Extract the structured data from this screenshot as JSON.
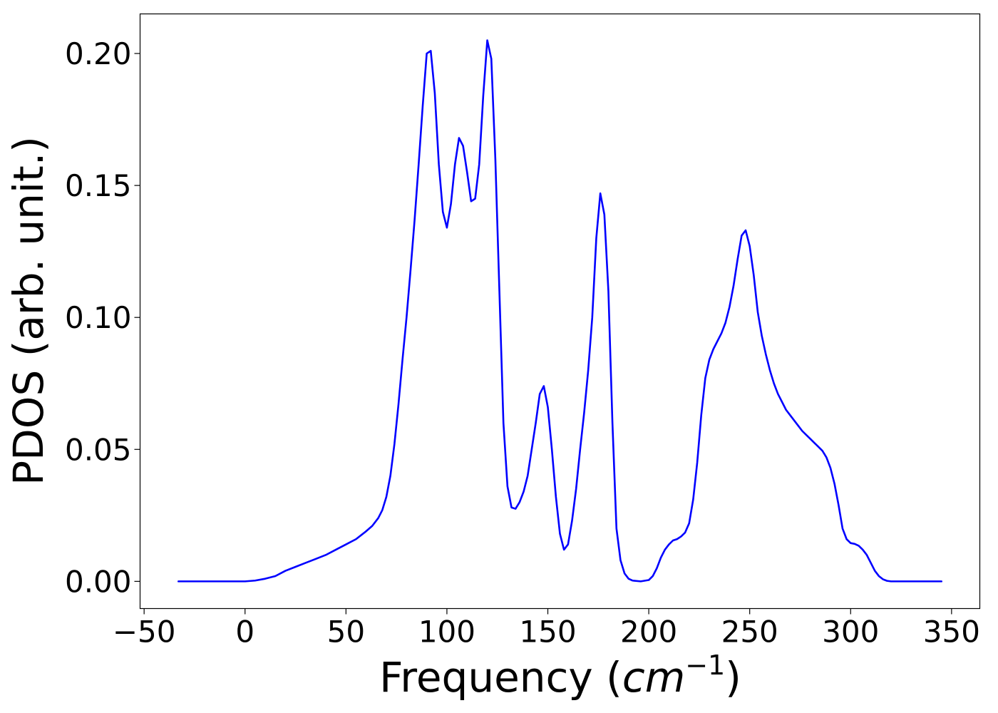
{
  "chart_data": {
    "type": "line",
    "title": "",
    "xlabel_main": "Frequency (",
    "xlabel_unit": "cm",
    "xlabel_exp": "−1",
    "xlabel_close": ")",
    "ylabel": "PDOS (arb. unit.)",
    "xlim": [
      -52,
      364
    ],
    "ylim": [
      -0.0103,
      0.215
    ],
    "xticks": [
      -50,
      0,
      50,
      100,
      150,
      200,
      250,
      300,
      350
    ],
    "xtick_labels": [
      "−50",
      "0",
      "50",
      "100",
      "150",
      "200",
      "250",
      "300",
      "350"
    ],
    "yticks": [
      0.0,
      0.05,
      0.1,
      0.15,
      0.2
    ],
    "ytick_labels": [
      "0.00",
      "0.05",
      "0.10",
      "0.15",
      "0.20"
    ],
    "grid": false,
    "legend": "none",
    "series": [
      {
        "color": "#0000ff",
        "x": [
          -33,
          0,
          5,
          10,
          15,
          20,
          25,
          30,
          35,
          40,
          45,
          50,
          55,
          60,
          63,
          66,
          68,
          70,
          72,
          74,
          76,
          78,
          80,
          82,
          84,
          86,
          88,
          90,
          92,
          94,
          96,
          98,
          100,
          102,
          104,
          106,
          108,
          110,
          112,
          114,
          116,
          118,
          120,
          122,
          124,
          126,
          128,
          130,
          132,
          134,
          136,
          138,
          140,
          142,
          144,
          146,
          148,
          150,
          152,
          154,
          156,
          158,
          160,
          162,
          164,
          166,
          168,
          170,
          172,
          174,
          176,
          178,
          180,
          182,
          184,
          186,
          188,
          190,
          192,
          196,
          200,
          202,
          204,
          206,
          208,
          210,
          212,
          214,
          216,
          218,
          220,
          222,
          224,
          226,
          228,
          230,
          232,
          234,
          236,
          238,
          240,
          242,
          244,
          246,
          248,
          250,
          252,
          254,
          256,
          258,
          260,
          262,
          264,
          266,
          268,
          270,
          272,
          274,
          276,
          278,
          280,
          282,
          284,
          286,
          288,
          290,
          292,
          294,
          296,
          298,
          300,
          302,
          304,
          306,
          308,
          310,
          312,
          314,
          316,
          318,
          320,
          322,
          326,
          345
        ],
        "y": [
          0.0,
          0.0,
          0.0003,
          0.001,
          0.002,
          0.004,
          0.0055,
          0.007,
          0.0085,
          0.01,
          0.012,
          0.014,
          0.016,
          0.019,
          0.021,
          0.024,
          0.027,
          0.032,
          0.04,
          0.052,
          0.067,
          0.084,
          0.1,
          0.118,
          0.137,
          0.158,
          0.18,
          0.2,
          0.201,
          0.185,
          0.158,
          0.14,
          0.134,
          0.143,
          0.158,
          0.168,
          0.165,
          0.155,
          0.144,
          0.145,
          0.158,
          0.184,
          0.205,
          0.198,
          0.16,
          0.11,
          0.06,
          0.036,
          0.028,
          0.0275,
          0.03,
          0.034,
          0.04,
          0.05,
          0.06,
          0.071,
          0.074,
          0.066,
          0.05,
          0.032,
          0.018,
          0.012,
          0.014,
          0.023,
          0.035,
          0.05,
          0.064,
          0.08,
          0.1,
          0.13,
          0.147,
          0.139,
          0.11,
          0.06,
          0.02,
          0.008,
          0.003,
          0.001,
          0.0003,
          0.0,
          0.0005,
          0.002,
          0.005,
          0.009,
          0.012,
          0.014,
          0.0155,
          0.016,
          0.017,
          0.0185,
          0.022,
          0.031,
          0.045,
          0.063,
          0.077,
          0.084,
          0.088,
          0.091,
          0.094,
          0.098,
          0.104,
          0.112,
          0.122,
          0.131,
          0.133,
          0.127,
          0.116,
          0.102,
          0.093,
          0.086,
          0.08,
          0.075,
          0.071,
          0.068,
          0.065,
          0.063,
          0.061,
          0.059,
          0.057,
          0.0555,
          0.054,
          0.0525,
          0.051,
          0.0495,
          0.047,
          0.043,
          0.037,
          0.029,
          0.02,
          0.016,
          0.0145,
          0.0142,
          0.0135,
          0.012,
          0.01,
          0.007,
          0.004,
          0.002,
          0.0008,
          0.0002,
          0.0,
          0.0,
          0.0,
          0.0
        ]
      }
    ]
  }
}
